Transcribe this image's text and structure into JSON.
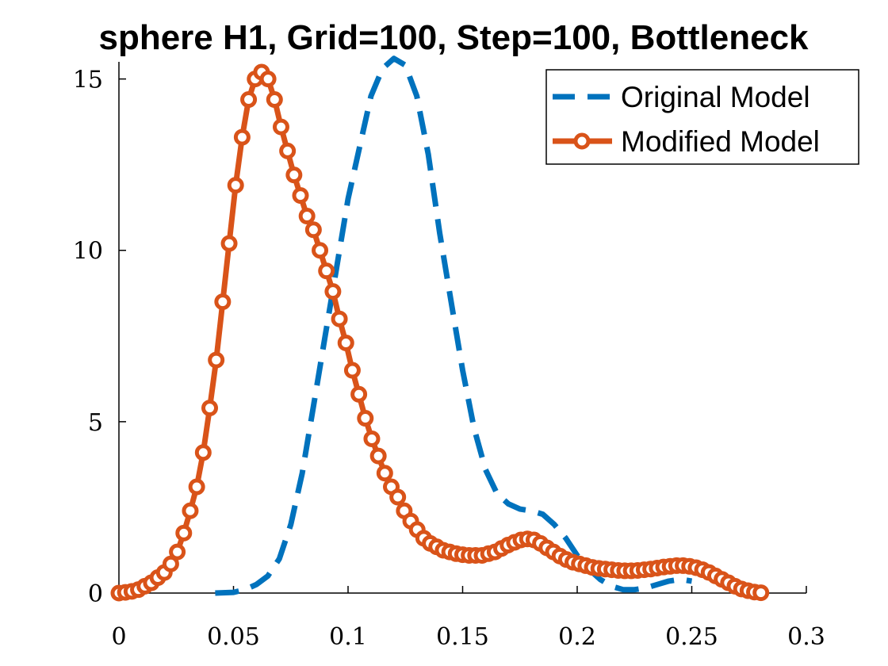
{
  "chart_data": {
    "type": "line",
    "title": "sphere H1, Grid=100, Step=100, Bottleneck",
    "xlabel": "",
    "ylabel": "",
    "xlim": [
      0,
      0.3
    ],
    "ylim": [
      0,
      15.5
    ],
    "x_ticks": [
      0,
      0.05,
      0.1,
      0.15,
      0.2,
      0.25,
      0.3
    ],
    "x_tick_labels": [
      "0",
      "0.05",
      "0.1",
      "0.15",
      "0.2",
      "0.25",
      "0.3"
    ],
    "y_ticks": [
      0,
      5,
      10,
      15
    ],
    "y_tick_labels": [
      "0",
      "5",
      "10",
      "15"
    ],
    "grid": false,
    "legend_position": "top-right",
    "series": [
      {
        "name": "Original Model",
        "color": "#0072BD",
        "line_style": "dashed",
        "marker": "none",
        "x": [
          0.042,
          0.05,
          0.055,
          0.06,
          0.065,
          0.07,
          0.075,
          0.08,
          0.085,
          0.09,
          0.095,
          0.1,
          0.105,
          0.11,
          0.115,
          0.12,
          0.125,
          0.13,
          0.135,
          0.14,
          0.145,
          0.15,
          0.155,
          0.16,
          0.165,
          0.17,
          0.175,
          0.18,
          0.185,
          0.19,
          0.195,
          0.2,
          0.205,
          0.21,
          0.215,
          0.22,
          0.225,
          0.23,
          0.235,
          0.24,
          0.245,
          0.25
        ],
        "y": [
          0.0,
          0.02,
          0.1,
          0.25,
          0.5,
          1.0,
          2.0,
          3.5,
          5.5,
          7.5,
          9.5,
          11.5,
          13.0,
          14.5,
          15.3,
          15.6,
          15.4,
          14.5,
          12.8,
          10.5,
          8.5,
          6.5,
          4.8,
          3.6,
          2.9,
          2.6,
          2.45,
          2.4,
          2.3,
          2.0,
          1.6,
          1.1,
          0.7,
          0.4,
          0.2,
          0.1,
          0.1,
          0.15,
          0.25,
          0.35,
          0.4,
          0.35
        ]
      },
      {
        "name": "Modified Model",
        "color": "#D95319",
        "line_style": "solid",
        "marker": "circle",
        "x": [
          0,
          0.00283,
          0.00566,
          0.00849,
          0.01132,
          0.01415,
          0.01698,
          0.01981,
          0.02264,
          0.02547,
          0.0283,
          0.03113,
          0.03396,
          0.03679,
          0.03962,
          0.04245,
          0.04528,
          0.04811,
          0.05094,
          0.05377,
          0.0566,
          0.05943,
          0.06226,
          0.06509,
          0.06792,
          0.07075,
          0.07358,
          0.07641,
          0.07924,
          0.08207,
          0.0849,
          0.08773,
          0.09056,
          0.09339,
          0.09622,
          0.09905,
          0.10188,
          0.10471,
          0.10754,
          0.11037,
          0.1132,
          0.11603,
          0.11886,
          0.12169,
          0.12452,
          0.12735,
          0.13018,
          0.13301,
          0.13584,
          0.13867,
          0.1415,
          0.14433,
          0.14716,
          0.14999,
          0.15282,
          0.15565,
          0.15848,
          0.16131,
          0.16414,
          0.16697,
          0.1698,
          0.17263,
          0.17546,
          0.17829,
          0.18112,
          0.18395,
          0.18678,
          0.18961,
          0.19244,
          0.19527,
          0.1981,
          0.20093,
          0.20376,
          0.20659,
          0.20942,
          0.21225,
          0.21508,
          0.21791,
          0.22074,
          0.22357,
          0.2264,
          0.22923,
          0.23206,
          0.23489,
          0.23772,
          0.24055,
          0.24338,
          0.24621,
          0.24904,
          0.25187,
          0.2547,
          0.25753,
          0.26036,
          0.26319,
          0.26602,
          0.26885,
          0.27168,
          0.27451,
          0.27734,
          0.28017
        ],
        "y": [
          0.0,
          0.02,
          0.05,
          0.1,
          0.2,
          0.3,
          0.45,
          0.6,
          0.85,
          1.2,
          1.75,
          2.4,
          3.1,
          4.1,
          5.4,
          6.8,
          8.5,
          10.2,
          11.9,
          13.3,
          14.4,
          15.0,
          15.2,
          15.0,
          14.4,
          13.6,
          12.9,
          12.2,
          11.6,
          11.0,
          10.6,
          10.0,
          9.4,
          8.8,
          8.0,
          7.3,
          6.5,
          5.8,
          5.1,
          4.5,
          4.0,
          3.5,
          3.1,
          2.8,
          2.4,
          2.1,
          1.85,
          1.6,
          1.45,
          1.35,
          1.25,
          1.2,
          1.15,
          1.12,
          1.1,
          1.1,
          1.1,
          1.15,
          1.2,
          1.3,
          1.4,
          1.48,
          1.55,
          1.58,
          1.55,
          1.45,
          1.32,
          1.2,
          1.08,
          0.98,
          0.9,
          0.85,
          0.8,
          0.75,
          0.72,
          0.7,
          0.68,
          0.66,
          0.65,
          0.65,
          0.66,
          0.68,
          0.7,
          0.73,
          0.76,
          0.78,
          0.8,
          0.8,
          0.78,
          0.74,
          0.68,
          0.6,
          0.5,
          0.4,
          0.3,
          0.2,
          0.12,
          0.07,
          0.03,
          0.01
        ]
      }
    ]
  }
}
